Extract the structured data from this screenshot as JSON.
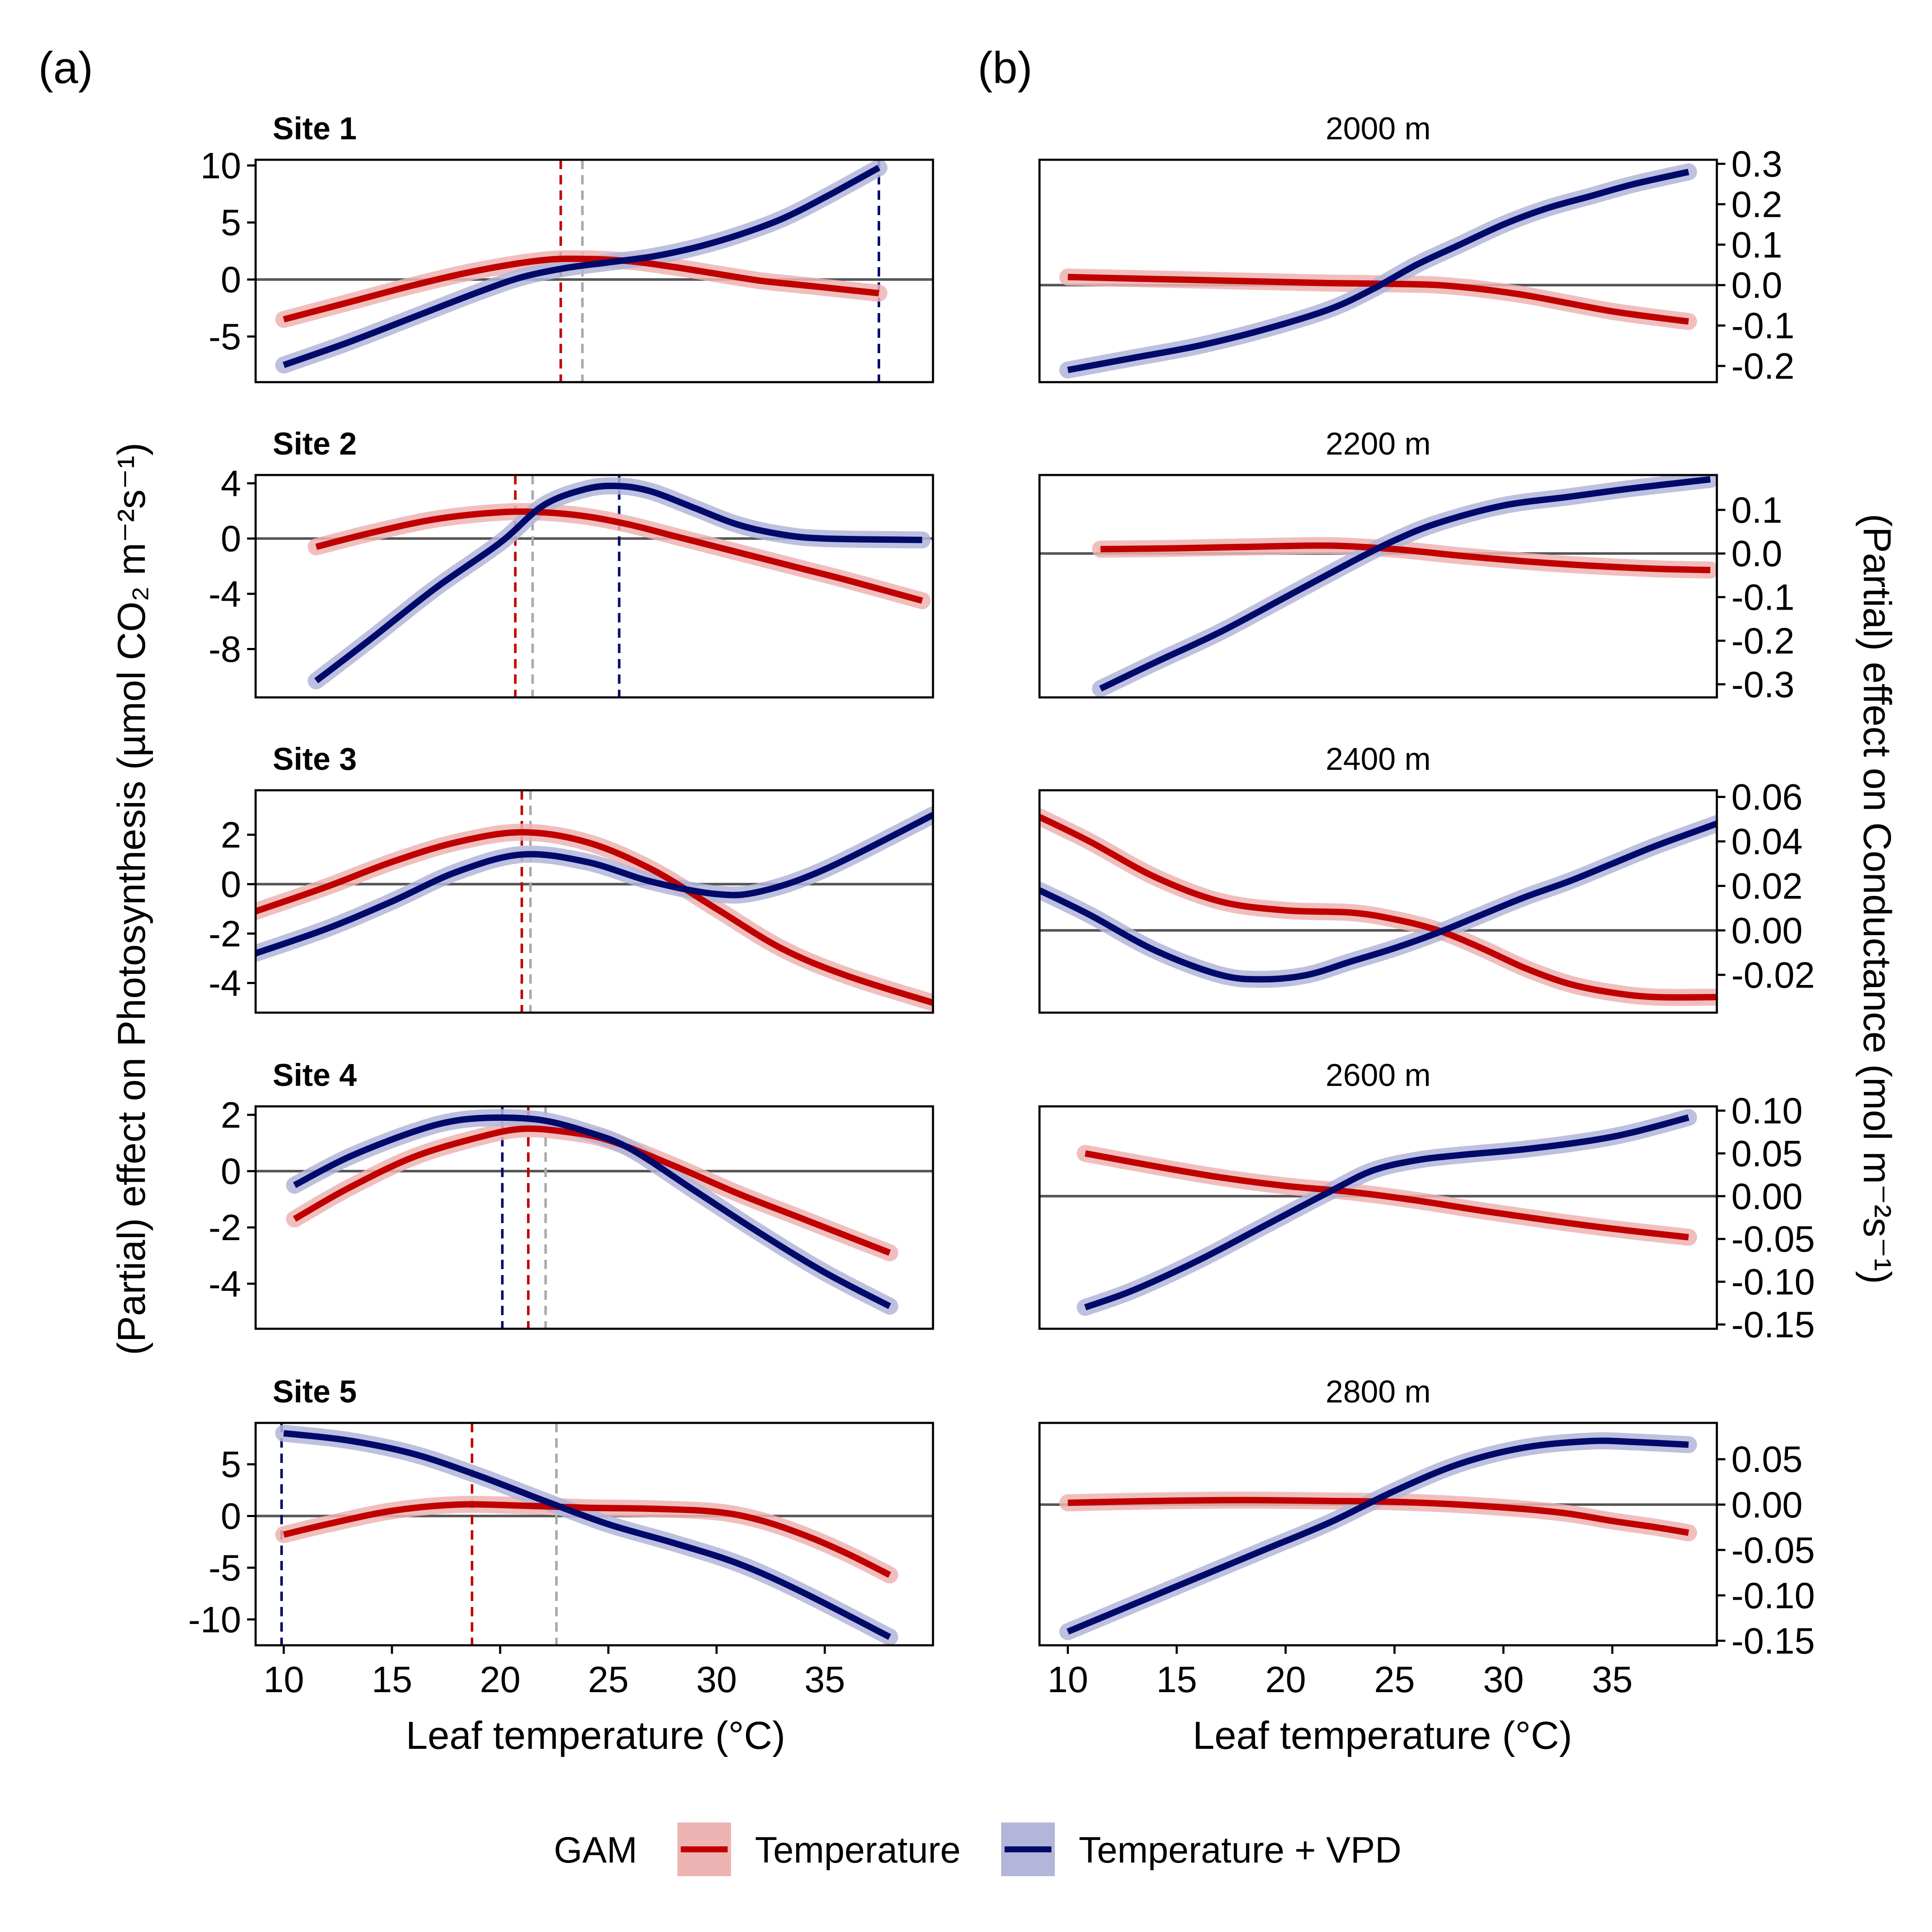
{
  "figure": {
    "panel_a_label": "(a)",
    "panel_b_label": "(b)",
    "y_label_left": "(Partial) effect on Photosynthesis (µmol CO₂ m⁻²s⁻¹)",
    "y_label_right": "(Partial) effect on Conductance (mol m⁻²s⁻¹)",
    "x_label": "Leaf temperature (°C)",
    "legend": {
      "title": "GAM",
      "items": [
        {
          "label": "Temperature",
          "color": "#c00000",
          "band": "#eeb3b3"
        },
        {
          "label": "Temperature + VPD",
          "color": "#000a6b",
          "band": "#b3b5d9"
        }
      ]
    }
  },
  "chart_data": [
    {
      "type": "line",
      "panel": "a",
      "title": "Site 1",
      "xlabel": "Leaf temperature (°C)",
      "ylabel": "(Partial) effect on Photosynthesis (µmol CO2 m-2 s-1)",
      "xlim": [
        8.7,
        40
      ],
      "ylim": [
        -9,
        10.5
      ],
      "xticks": [
        10,
        15,
        20,
        25,
        30,
        35
      ],
      "yticks": [
        -5,
        0,
        5,
        10
      ],
      "series": [
        {
          "name": "Temperature",
          "color": "#c00000",
          "x": [
            10,
            13,
            16,
            19,
            22,
            24,
            26,
            28,
            30,
            32,
            34,
            36,
            37.5
          ],
          "y": [
            -3.5,
            -2,
            -0.5,
            0.8,
            1.7,
            1.8,
            1.6,
            1.1,
            0.5,
            -0.1,
            -0.5,
            -0.9,
            -1.2
          ]
        },
        {
          "name": "Temperature + VPD",
          "color": "#000a6b",
          "x": [
            10,
            13,
            16,
            19,
            21,
            23,
            25,
            27,
            29,
            31,
            33,
            35,
            37.5
          ],
          "y": [
            -7.5,
            -5.5,
            -3.3,
            -1.1,
            0.2,
            1.0,
            1.5,
            2.0,
            2.8,
            3.9,
            5.3,
            7.2,
            9.8
          ]
        }
      ],
      "vlines": [
        {
          "x": 22.8,
          "color": "#c00000"
        },
        {
          "x": 23.8,
          "color": "#aaaaaa"
        },
        {
          "x": 37.5,
          "color": "#000a6b"
        }
      ]
    },
    {
      "type": "line",
      "panel": "a",
      "title": "Site 2",
      "xlim": [
        8.7,
        40
      ],
      "ylim": [
        -11.5,
        4.6
      ],
      "xticks": [
        10,
        15,
        20,
        25,
        30,
        35
      ],
      "yticks": [
        -8,
        -4,
        0,
        4
      ],
      "series": [
        {
          "name": "Temperature",
          "color": "#c00000",
          "x": [
            11.5,
            14,
            17,
            20,
            22,
            24,
            26,
            28,
            30,
            32,
            34,
            36,
            39.5
          ],
          "y": [
            -0.6,
            0.4,
            1.4,
            1.9,
            1.9,
            1.6,
            1.0,
            0.2,
            -0.6,
            -1.4,
            -2.2,
            -3.0,
            -4.5
          ]
        },
        {
          "name": "Temperature + VPD",
          "color": "#000a6b",
          "x": [
            11.5,
            14,
            17,
            20,
            22,
            24,
            25.5,
            27,
            29,
            31,
            33,
            35,
            39.5
          ],
          "y": [
            -10.3,
            -7.3,
            -3.6,
            -0.3,
            2.4,
            3.6,
            3.8,
            3.4,
            2.2,
            1.0,
            0.3,
            0.0,
            -0.1
          ]
        }
      ],
      "vlines": [
        {
          "x": 20.7,
          "color": "#c00000"
        },
        {
          "x": 21.5,
          "color": "#aaaaaa"
        },
        {
          "x": 25.5,
          "color": "#000a6b"
        }
      ]
    },
    {
      "type": "line",
      "panel": "a",
      "title": "Site 3",
      "xlim": [
        8.7,
        40
      ],
      "ylim": [
        -5.2,
        3.8
      ],
      "xticks": [
        10,
        15,
        20,
        25,
        30,
        35
      ],
      "yticks": [
        -4,
        -2,
        0,
        2
      ],
      "series": [
        {
          "name": "Temperature",
          "color": "#c00000",
          "x": [
            8.7,
            12,
            15,
            18,
            21,
            24,
            27,
            30,
            33,
            36,
            40
          ],
          "y": [
            -1.1,
            -0.1,
            0.9,
            1.7,
            2.1,
            1.7,
            0.6,
            -1.0,
            -2.6,
            -3.7,
            -4.8
          ]
        },
        {
          "name": "Temperature + VPD",
          "color": "#000a6b",
          "x": [
            8.7,
            12,
            15,
            18,
            21,
            24,
            27,
            30,
            32,
            35,
            40
          ],
          "y": [
            -2.8,
            -1.8,
            -0.7,
            0.5,
            1.2,
            0.9,
            0.1,
            -0.4,
            -0.3,
            0.6,
            2.8
          ]
        }
      ],
      "vlines": [
        {
          "x": 21.0,
          "color": "#c00000"
        },
        {
          "x": 21.4,
          "color": "#aaaaaa"
        }
      ]
    },
    {
      "type": "line",
      "panel": "a",
      "title": "Site 4",
      "xlim": [
        8.7,
        40
      ],
      "ylim": [
        -5.6,
        2.3
      ],
      "xticks": [
        10,
        15,
        20,
        25,
        30,
        35
      ],
      "yticks": [
        -4,
        -2,
        0,
        2
      ],
      "series": [
        {
          "name": "Temperature",
          "color": "#c00000",
          "x": [
            10.5,
            13,
            16,
            19,
            21,
            23,
            25,
            28,
            31,
            34,
            38
          ],
          "y": [
            -1.7,
            -0.6,
            0.5,
            1.2,
            1.5,
            1.4,
            1.1,
            0.2,
            -0.8,
            -1.7,
            -2.9
          ]
        },
        {
          "name": "Temperature + VPD",
          "color": "#000a6b",
          "x": [
            10.5,
            13,
            16,
            18,
            20,
            22,
            24,
            26,
            29,
            32,
            35,
            38
          ],
          "y": [
            -0.5,
            0.5,
            1.4,
            1.8,
            1.9,
            1.8,
            1.4,
            0.8,
            -0.7,
            -2.2,
            -3.6,
            -4.8
          ]
        }
      ],
      "vlines": [
        {
          "x": 20.1,
          "color": "#000a6b"
        },
        {
          "x": 21.3,
          "color": "#c00000"
        },
        {
          "x": 22.1,
          "color": "#aaaaaa"
        }
      ]
    },
    {
      "type": "line",
      "panel": "a",
      "title": "Site 5",
      "xlim": [
        8.7,
        40
      ],
      "ylim": [
        -12.5,
        9
      ],
      "xticks": [
        10,
        15,
        20,
        25,
        30,
        35
      ],
      "yticks": [
        -10,
        -5,
        0,
        5
      ],
      "series": [
        {
          "name": "Temperature",
          "color": "#c00000",
          "x": [
            10,
            12,
            15,
            18,
            21,
            24,
            27,
            30,
            32,
            34,
            36,
            38
          ],
          "y": [
            -1.8,
            -0.8,
            0.5,
            1.1,
            1.0,
            0.8,
            0.7,
            0.4,
            -0.4,
            -1.8,
            -3.6,
            -5.7
          ]
        },
        {
          "name": "Temperature + VPD",
          "color": "#000a6b",
          "x": [
            10,
            13,
            16,
            19,
            22,
            25,
            28,
            31,
            34,
            38
          ],
          "y": [
            8.0,
            7.3,
            6.0,
            3.9,
            1.5,
            -0.8,
            -2.6,
            -4.6,
            -7.4,
            -11.7
          ]
        }
      ],
      "vlines": [
        {
          "x": 9.9,
          "color": "#000a6b"
        },
        {
          "x": 18.7,
          "color": "#c00000"
        },
        {
          "x": 22.6,
          "color": "#aaaaaa"
        }
      ]
    },
    {
      "type": "line",
      "panel": "b",
      "title": "2000 m",
      "xlabel": "Leaf temperature (°C)",
      "ylabel": "(Partial) effect on Conductance (mol m-2 s-1)",
      "xlim": [
        8.7,
        39.8
      ],
      "ylim": [
        -0.24,
        0.31
      ],
      "xticks": [
        10,
        15,
        20,
        25,
        30,
        35
      ],
      "yticks": [
        -0.2,
        -0.1,
        0.0,
        0.1,
        0.2,
        0.3
      ],
      "ytick_labels": [
        "-0.2",
        "-0.1",
        "0.0",
        "0.1",
        "0.2",
        "0.3"
      ],
      "series": [
        {
          "name": "Temperature",
          "color": "#c00000",
          "x": [
            10,
            14,
            18,
            22,
            25,
            27,
            29,
            31,
            33,
            35,
            37,
            38.5
          ],
          "y": [
            0.02,
            0.015,
            0.01,
            0.005,
            0.003,
            0.0,
            -0.01,
            -0.025,
            -0.045,
            -0.065,
            -0.08,
            -0.09
          ]
        },
        {
          "name": "Temperature + VPD",
          "color": "#000a6b",
          "x": [
            10,
            13,
            16,
            19,
            22,
            24,
            26,
            28,
            30,
            32,
            34,
            36,
            38.5
          ],
          "y": [
            -0.21,
            -0.18,
            -0.15,
            -0.11,
            -0.06,
            -0.01,
            0.05,
            0.1,
            0.15,
            0.19,
            0.22,
            0.25,
            0.28
          ]
        }
      ]
    },
    {
      "type": "line",
      "panel": "b",
      "title": "2200 m",
      "xlim": [
        8.7,
        39.8
      ],
      "ylim": [
        -0.33,
        0.18
      ],
      "xticks": [
        10,
        15,
        20,
        25,
        30,
        35
      ],
      "yticks": [
        -0.3,
        -0.2,
        -0.1,
        0.0,
        0.1
      ],
      "ytick_labels": [
        "-0.3",
        "-0.2",
        "-0.1",
        "0.0",
        "0.1"
      ],
      "series": [
        {
          "name": "Temperature",
          "color": "#c00000",
          "x": [
            11.5,
            15,
            19,
            22,
            25,
            28,
            31,
            34,
            37,
            39.5
          ],
          "y": [
            0.01,
            0.012,
            0.016,
            0.018,
            0.01,
            -0.005,
            -0.018,
            -0.028,
            -0.035,
            -0.038
          ]
        },
        {
          "name": "Temperature + VPD",
          "color": "#000a6b",
          "x": [
            11.5,
            14,
            17,
            20,
            23,
            25,
            27,
            30,
            33,
            36,
            39.5
          ],
          "y": [
            -0.31,
            -0.25,
            -0.18,
            -0.1,
            -0.02,
            0.03,
            0.07,
            0.11,
            0.13,
            0.15,
            0.17
          ]
        }
      ]
    },
    {
      "type": "line",
      "panel": "b",
      "title": "2400 m",
      "xlim": [
        8.7,
        39.8
      ],
      "ylim": [
        -0.037,
        0.063
      ],
      "xticks": [
        10,
        15,
        20,
        25,
        30,
        35
      ],
      "yticks": [
        -0.02,
        0.0,
        0.02,
        0.04,
        0.06
      ],
      "ytick_labels": [
        "-0.02",
        "0.00",
        "0.02",
        "0.04",
        "0.06"
      ],
      "series": [
        {
          "name": "Temperature",
          "color": "#c00000",
          "x": [
            8.7,
            11,
            14,
            17,
            20,
            23,
            25,
            27,
            29,
            31,
            33,
            35,
            37,
            39.8
          ],
          "y": [
            0.051,
            0.04,
            0.024,
            0.013,
            0.009,
            0.008,
            0.005,
            0.0,
            -0.008,
            -0.017,
            -0.024,
            -0.028,
            -0.03,
            -0.03
          ]
        },
        {
          "name": "Temperature + VPD",
          "color": "#000a6b",
          "x": [
            8.7,
            11,
            14,
            17,
            19,
            21,
            23,
            25,
            27,
            29,
            31,
            33,
            35,
            37,
            39.8
          ],
          "y": [
            0.018,
            0.007,
            -0.009,
            -0.02,
            -0.022,
            -0.02,
            -0.014,
            -0.008,
            -0.001,
            0.007,
            0.015,
            0.022,
            0.03,
            0.038,
            0.048
          ]
        }
      ]
    },
    {
      "type": "line",
      "panel": "b",
      "title": "2600 m",
      "xlim": [
        8.7,
        39.8
      ],
      "ylim": [
        -0.155,
        0.105
      ],
      "xticks": [
        10,
        15,
        20,
        25,
        30,
        35
      ],
      "yticks": [
        -0.15,
        -0.1,
        -0.05,
        0.0,
        0.05,
        0.1
      ],
      "ytick_labels": [
        "-0.15",
        "-0.10",
        "-0.05",
        "0.00",
        "0.05",
        "0.10"
      ],
      "series": [
        {
          "name": "Temperature",
          "color": "#c00000",
          "x": [
            10.8,
            14,
            17,
            20,
            23,
            26,
            29,
            32,
            35,
            38.5
          ],
          "y": [
            0.05,
            0.035,
            0.022,
            0.012,
            0.005,
            -0.005,
            -0.017,
            -0.028,
            -0.038,
            -0.048
          ]
        },
        {
          "name": "Temperature + VPD",
          "color": "#000a6b",
          "x": [
            10.8,
            13,
            16,
            19,
            22,
            24,
            26,
            28,
            31,
            34,
            36,
            38.5
          ],
          "y": [
            -0.13,
            -0.11,
            -0.075,
            -0.035,
            0.005,
            0.03,
            0.042,
            0.048,
            0.055,
            0.065,
            0.075,
            0.092
          ]
        }
      ]
    },
    {
      "type": "line",
      "panel": "b",
      "title": "2800 m",
      "xlim": [
        8.7,
        39.8
      ],
      "ylim": [
        -0.155,
        0.09
      ],
      "xticks": [
        10,
        15,
        20,
        25,
        30,
        35
      ],
      "yticks": [
        -0.15,
        -0.1,
        -0.05,
        0.0,
        0.05
      ],
      "ytick_labels": [
        "-0.15",
        "-0.10",
        "-0.05",
        "0.00",
        "0.05"
      ],
      "series": [
        {
          "name": "Temperature",
          "color": "#c00000",
          "x": [
            10,
            14,
            18,
            22,
            25,
            28,
            31,
            33,
            35,
            37,
            38.5
          ],
          "y": [
            0.002,
            0.004,
            0.005,
            0.004,
            0.003,
            0.0,
            -0.005,
            -0.01,
            -0.018,
            -0.025,
            -0.031
          ]
        },
        {
          "name": "Temperature + VPD",
          "color": "#000a6b",
          "x": [
            10,
            13,
            16,
            19,
            22,
            25,
            28,
            31,
            34,
            36,
            38.5
          ],
          "y": [
            -0.14,
            -0.11,
            -0.08,
            -0.05,
            -0.02,
            0.015,
            0.045,
            0.063,
            0.07,
            0.069,
            0.066
          ]
        }
      ]
    }
  ]
}
